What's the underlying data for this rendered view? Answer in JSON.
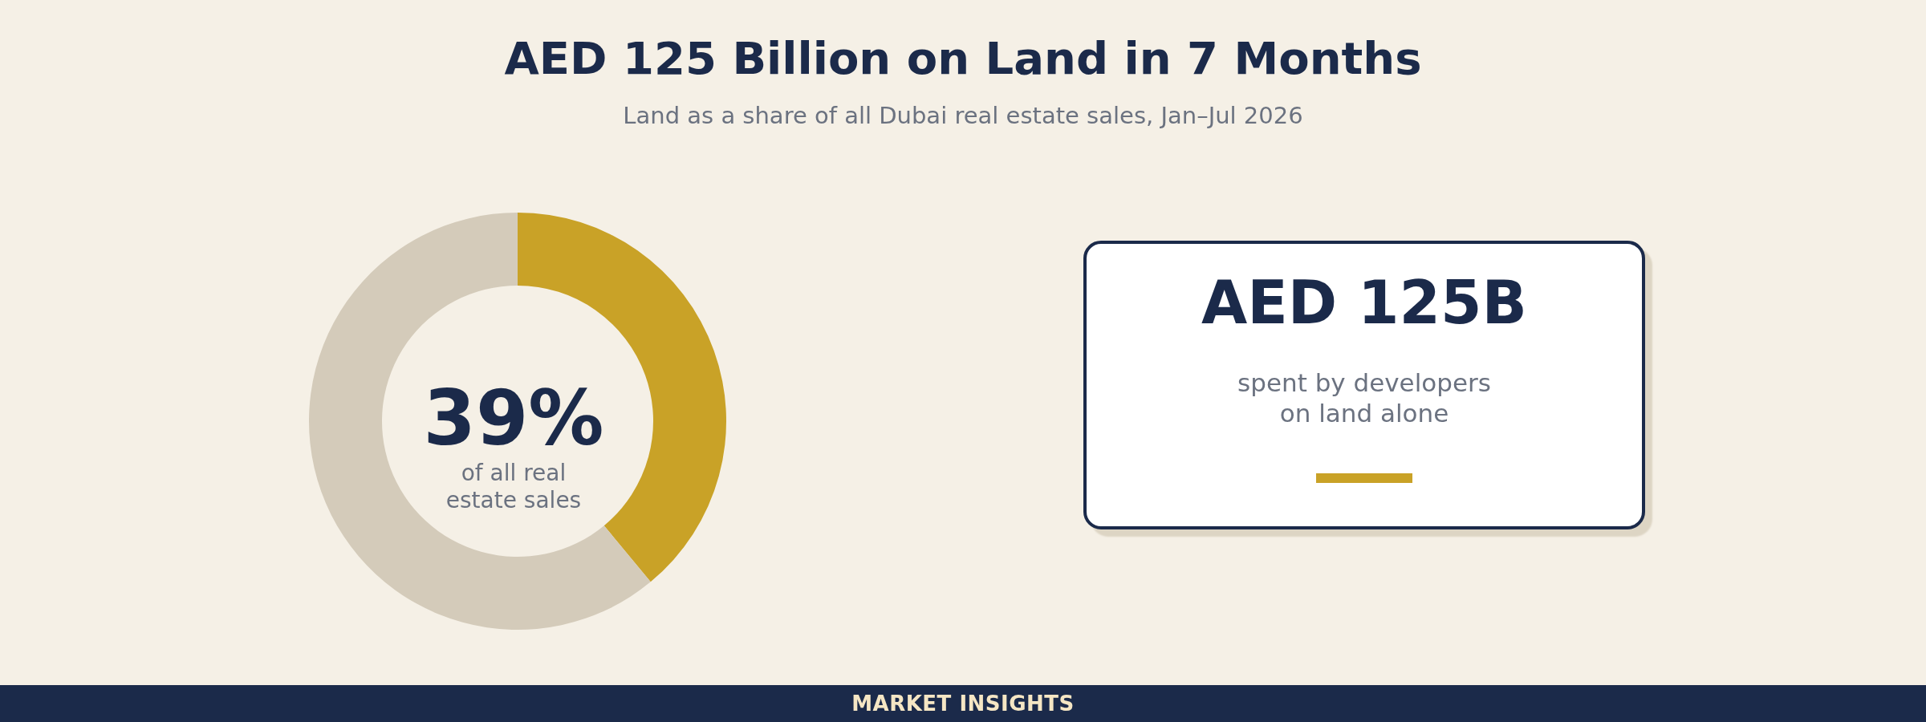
{
  "chart_data": [
    {
      "type": "donut",
      "title": "AED 125 Billion on Land in 7 Months",
      "subtitle": "Land as a share of all Dubai real estate sales, Jan–Jul 2026",
      "categories": [
        null,
        null
      ],
      "values": [
        39,
        61
      ],
      "colors": [
        "#c9a227",
        "#d4cbba"
      ],
      "annotations": [
        "39%",
        "of all real estate sales",
        "MARKET INSIGHTS"
      ]
    },
    {
      "type": "other",
      "annotations": [
        "AED 125B",
        "spent by developers on land alone"
      ]
    }
  ]
}
